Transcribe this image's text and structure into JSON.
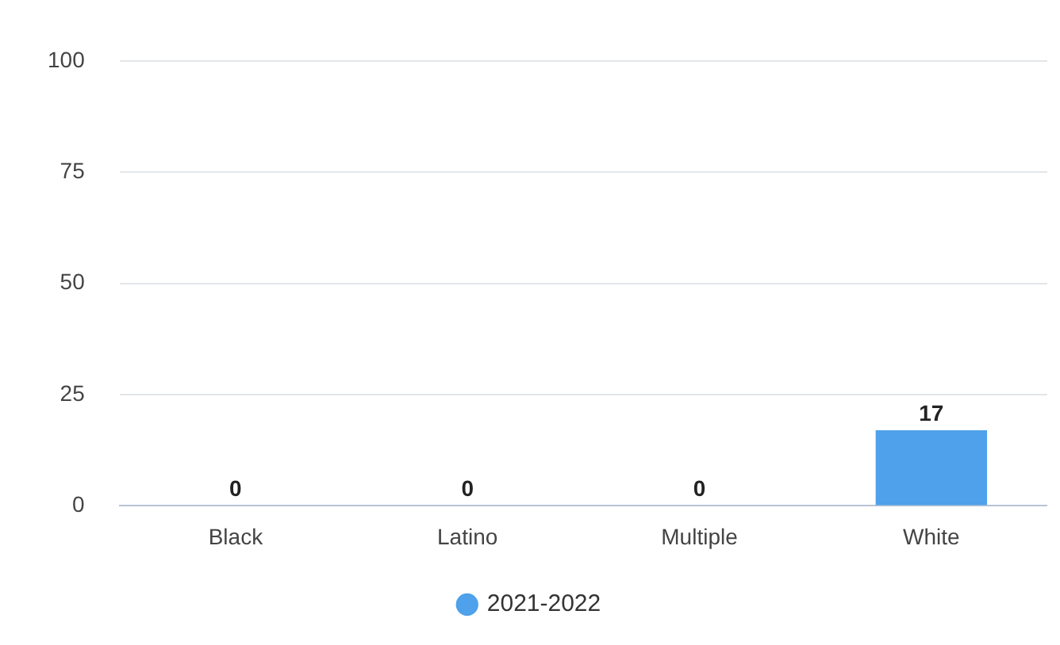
{
  "chart_data": {
    "type": "bar",
    "categories": [
      "Black",
      "Latino",
      "Multiple",
      "White"
    ],
    "series": [
      {
        "name": "2021-2022",
        "color": "#4ea1ea",
        "values": [
          0,
          0,
          0,
          17
        ]
      }
    ],
    "ylim": [
      0,
      100
    ],
    "yticks": [
      0,
      25,
      50,
      75,
      100
    ],
    "grid": "y",
    "legend": "bottom",
    "data_labels": true
  }
}
